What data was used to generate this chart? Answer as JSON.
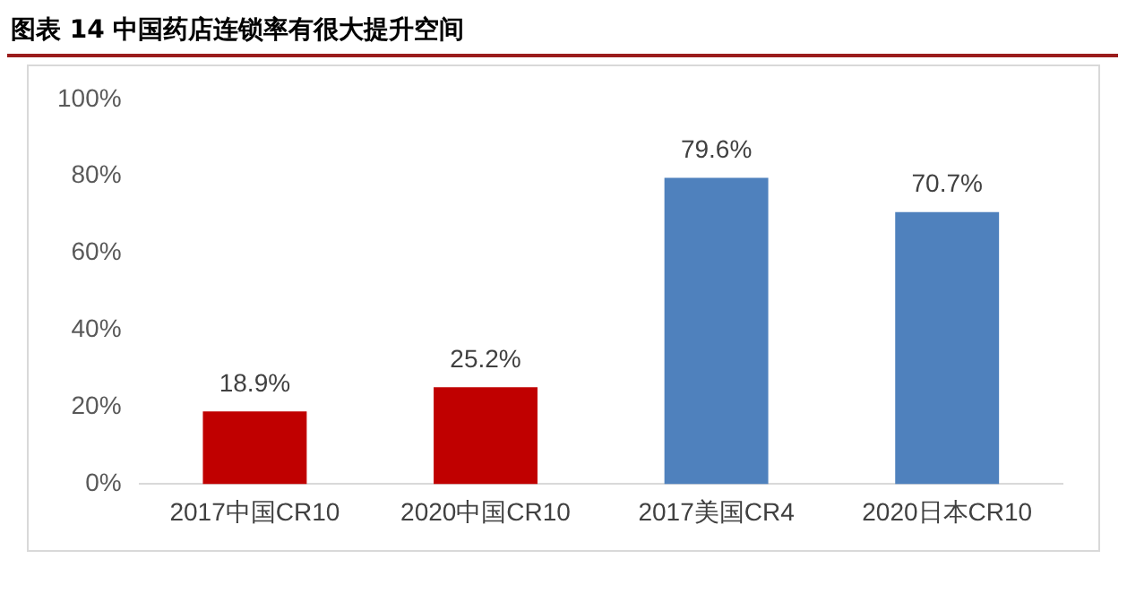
{
  "chart_data": {
    "type": "bar",
    "title": "图表 14  中国药店连锁率有很大提升空间",
    "categories": [
      "2017中国CR10",
      "2020中国CR10",
      "2017美国CR4",
      "2020日本CR10"
    ],
    "values": [
      18.9,
      25.2,
      79.6,
      70.7
    ],
    "colors": [
      "#c00000",
      "#c00000",
      "#4f81bd",
      "#4f81bd"
    ],
    "value_labels": [
      "18.9%",
      "25.2%",
      "79.6%",
      "70.7%"
    ],
    "ylim": [
      0,
      100
    ],
    "yticks": [
      {
        "value": 0,
        "label": "0%"
      },
      {
        "value": 20,
        "label": "20%"
      },
      {
        "value": 40,
        "label": "40%"
      },
      {
        "value": 60,
        "label": "60%"
      },
      {
        "value": 80,
        "label": "80%"
      },
      {
        "value": 100,
        "label": "100%"
      }
    ],
    "grid": false,
    "legend": false
  }
}
